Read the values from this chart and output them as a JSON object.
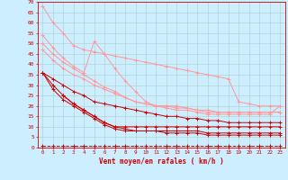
{
  "bg_color": "#cceeff",
  "grid_color": "#aacccc",
  "xlabel": "Vent moyen/en rafales ( km/h )",
  "xlabel_color": "#cc0000",
  "tick_color": "#cc0000",
  "xlim": [
    -0.5,
    23.5
  ],
  "ylim": [
    0,
    70
  ],
  "yticks": [
    0,
    5,
    10,
    15,
    20,
    25,
    30,
    35,
    40,
    45,
    50,
    55,
    60,
    65,
    70
  ],
  "xticks": [
    0,
    1,
    2,
    3,
    4,
    5,
    6,
    7,
    8,
    9,
    10,
    11,
    12,
    13,
    14,
    15,
    16,
    17,
    18,
    19,
    20,
    21,
    22,
    23
  ],
  "lines_dark": [
    {
      "x": [
        0,
        1,
        2,
        3,
        4,
        5,
        6,
        7,
        8,
        9,
        10,
        11,
        12,
        13,
        14,
        15,
        16,
        17,
        18,
        19,
        20,
        21,
        22,
        23
      ],
      "y": [
        36,
        33,
        30,
        27,
        25,
        22,
        21,
        20,
        19,
        18,
        17,
        16,
        15,
        15,
        14,
        14,
        13,
        13,
        12,
        12,
        12,
        12,
        12,
        12
      ]
    },
    {
      "x": [
        0,
        1,
        2,
        3,
        4,
        5,
        6,
        7,
        8,
        9,
        10,
        11,
        12,
        13,
        14,
        15,
        16,
        17,
        18,
        19,
        20,
        21,
        22,
        23
      ],
      "y": [
        36,
        30,
        25,
        21,
        18,
        15,
        12,
        10,
        9,
        8,
        8,
        8,
        8,
        8,
        8,
        8,
        7,
        7,
        7,
        7,
        7,
        7,
        7,
        7
      ]
    },
    {
      "x": [
        0,
        1,
        2,
        3,
        4,
        5,
        6,
        7,
        8,
        9,
        10,
        11,
        12,
        13,
        14,
        15,
        16,
        17,
        18,
        19,
        20,
        21,
        22,
        23
      ],
      "y": [
        36,
        28,
        23,
        20,
        17,
        14,
        11,
        9,
        8,
        8,
        8,
        8,
        7,
        7,
        7,
        7,
        6,
        6,
        6,
        6,
        6,
        6,
        6,
        6
      ]
    },
    {
      "x": [
        2,
        3,
        4,
        5,
        6,
        7,
        8,
        9,
        10,
        11,
        12,
        13,
        14,
        15,
        16,
        17,
        18,
        19,
        20,
        21,
        22,
        23
      ],
      "y": [
        25,
        21,
        18,
        15,
        12,
        10,
        10,
        10,
        10,
        10,
        10,
        10,
        10,
        10,
        10,
        10,
        10,
        10,
        10,
        10,
        10,
        10
      ]
    }
  ],
  "lines_light": [
    {
      "x": [
        0,
        1,
        2,
        3,
        4,
        5,
        6,
        7,
        8,
        9,
        10,
        11,
        12,
        13,
        14,
        15,
        16,
        17,
        18,
        19,
        20,
        21,
        22,
        23
      ],
      "y": [
        68,
        60,
        55,
        49,
        47,
        46,
        45,
        44,
        43,
        42,
        41,
        40,
        39,
        38,
        37,
        36,
        35,
        34,
        33,
        22,
        21,
        20,
        20,
        20
      ]
    },
    {
      "x": [
        0,
        1,
        2,
        3,
        4,
        5,
        6,
        7,
        8,
        9,
        10,
        11,
        12,
        13,
        14,
        15,
        16,
        17,
        18,
        19,
        20,
        21,
        22,
        23
      ],
      "y": [
        54,
        48,
        43,
        39,
        36,
        51,
        45,
        38,
        32,
        27,
        22,
        20,
        20,
        20,
        19,
        18,
        17,
        17,
        17,
        17,
        17,
        17,
        17,
        17
      ]
    },
    {
      "x": [
        0,
        1,
        2,
        3,
        4,
        5,
        6,
        7,
        8,
        9,
        10,
        11,
        12,
        13,
        14,
        15,
        16,
        17,
        18,
        19,
        20,
        21,
        22,
        23
      ],
      "y": [
        50,
        45,
        41,
        38,
        35,
        32,
        29,
        27,
        24,
        22,
        21,
        20,
        20,
        19,
        19,
        18,
        18,
        17,
        17,
        17,
        17,
        17,
        17,
        17
      ]
    },
    {
      "x": [
        0,
        1,
        2,
        3,
        4,
        5,
        6,
        7,
        8,
        9,
        10,
        11,
        12,
        13,
        14,
        15,
        16,
        17,
        18,
        19,
        20,
        21,
        22,
        23
      ],
      "y": [
        47,
        42,
        38,
        35,
        33,
        30,
        28,
        26,
        24,
        22,
        21,
        20,
        19,
        18,
        18,
        17,
        16,
        16,
        16,
        16,
        16,
        16,
        16,
        20
      ]
    }
  ],
  "dash_line": {
    "x": [
      0,
      1,
      2,
      3,
      4,
      5,
      6,
      7,
      8,
      9,
      10,
      11,
      12,
      13,
      14,
      15,
      16,
      17,
      18,
      19,
      20,
      21,
      22,
      23
    ],
    "y": [
      1,
      1,
      1,
      1,
      1,
      1,
      1,
      1,
      1,
      1,
      1,
      1,
      1,
      1,
      1,
      1,
      1,
      1,
      1,
      1,
      1,
      1,
      1,
      1
    ]
  },
  "dark_color": "#cc0000",
  "light_color": "#ff9999",
  "dash_color": "#cc0000",
  "marker": "+",
  "markersize": 3,
  "linewidth": 0.7
}
